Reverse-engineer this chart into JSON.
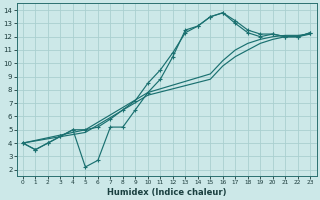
{
  "xlabel": "Humidex (Indice chaleur)",
  "bg_color": "#cce8e8",
  "grid_color": "#aad0d0",
  "line_color": "#1a7070",
  "xlim": [
    -0.5,
    23.5
  ],
  "ylim": [
    1.5,
    14.5
  ],
  "xticks": [
    0,
    1,
    2,
    3,
    4,
    5,
    6,
    7,
    8,
    9,
    10,
    11,
    12,
    13,
    14,
    15,
    16,
    17,
    18,
    19,
    20,
    21,
    22,
    23
  ],
  "yticks": [
    2,
    3,
    4,
    5,
    6,
    7,
    8,
    9,
    10,
    11,
    12,
    13,
    14
  ],
  "line1_x": [
    0,
    1,
    2,
    3,
    4,
    5,
    6,
    7,
    8,
    9,
    10,
    11,
    12,
    13,
    14,
    15,
    16,
    17,
    18,
    19,
    20,
    21,
    22,
    23
  ],
  "line1_y": [
    4.0,
    3.5,
    4.0,
    4.5,
    5.0,
    2.2,
    2.7,
    5.2,
    5.2,
    6.5,
    7.8,
    8.8,
    10.5,
    12.5,
    12.8,
    13.5,
    13.8,
    13.2,
    12.5,
    12.2,
    12.2,
    12.0,
    12.0,
    12.3
  ],
  "line2_x": [
    0,
    1,
    2,
    3,
    4,
    5,
    6,
    7,
    8,
    9,
    10,
    11,
    12,
    13,
    14,
    15,
    16,
    17,
    18,
    19,
    20,
    21,
    22,
    23
  ],
  "line2_y": [
    4.0,
    3.5,
    4.0,
    4.5,
    5.0,
    5.0,
    5.2,
    5.8,
    6.5,
    7.2,
    8.5,
    9.5,
    10.8,
    12.3,
    12.8,
    13.5,
    13.8,
    13.0,
    12.3,
    12.0,
    12.2,
    12.0,
    12.0,
    12.3
  ],
  "line3_x": [
    0,
    5,
    10,
    15,
    16,
    17,
    18,
    19,
    20,
    21,
    22,
    23
  ],
  "line3_y": [
    4.0,
    5.0,
    7.8,
    9.2,
    10.2,
    11.0,
    11.5,
    11.8,
    12.0,
    12.1,
    12.1,
    12.2
  ],
  "line4_x": [
    0,
    5,
    10,
    15,
    16,
    17,
    18,
    19,
    20,
    21,
    22,
    23
  ],
  "line4_y": [
    4.0,
    4.8,
    7.6,
    8.8,
    9.8,
    10.5,
    11.0,
    11.5,
    11.8,
    12.0,
    12.0,
    12.2
  ]
}
